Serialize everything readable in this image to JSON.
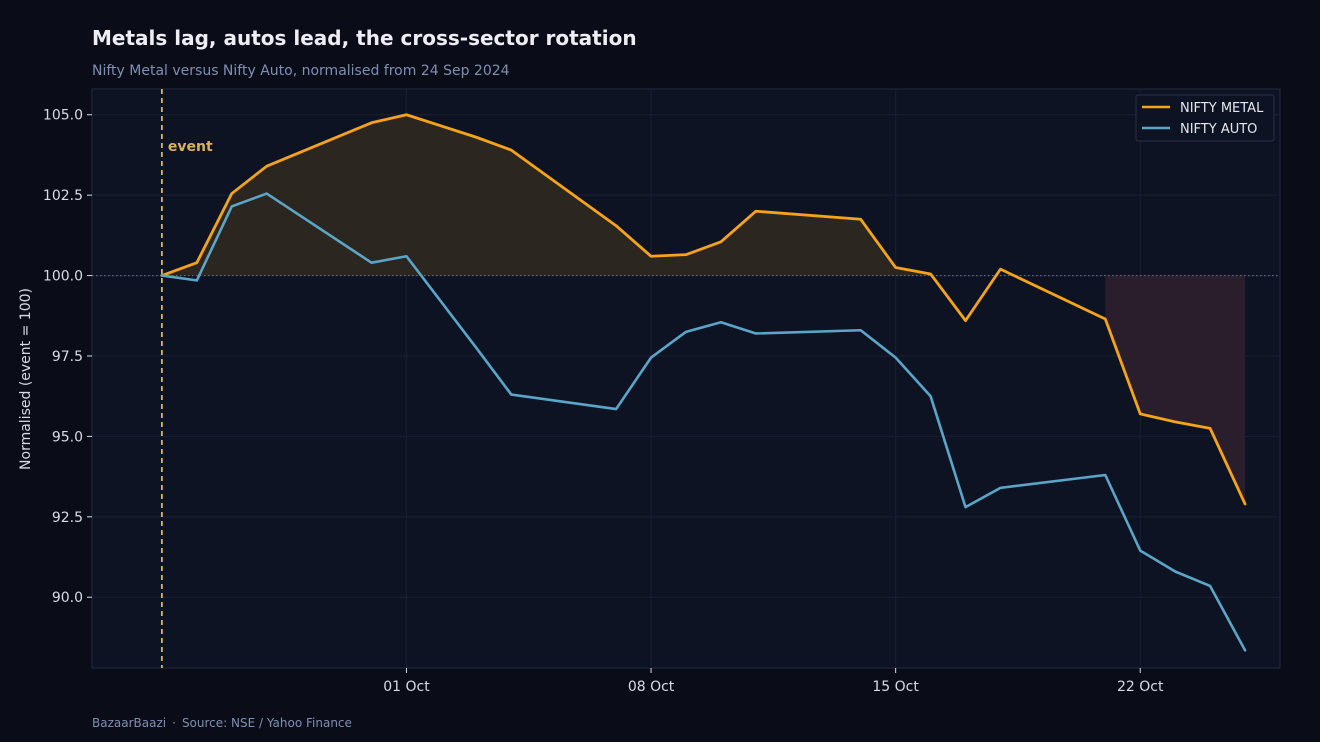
{
  "header": {
    "title": "Metals lag, autos lead, the cross-sector rotation",
    "subtitle": "Nifty Metal versus Nifty Auto, normalised from 24 Sep 2024"
  },
  "footer": {
    "brand": "BazaarBaazi",
    "source": "Source: NSE / Yahoo Finance"
  },
  "colors": {
    "background": "#0a0d18",
    "plot_bg": "#0e1324",
    "metal": "#f5a31a",
    "auto": "#5aa5c8",
    "event": "#d9b35c",
    "fill_above": "#2b2620",
    "fill_below": "#2a1e2d"
  },
  "chart_data": {
    "type": "line",
    "ylabel": "Normalised (event = 100)",
    "xlabel": "",
    "ylim": [
      87.8,
      105.8
    ],
    "y_ticks": [
      90.0,
      92.5,
      95.0,
      97.5,
      100.0,
      102.5,
      105.0
    ],
    "y_tick_labels": [
      "90.0",
      "92.5",
      "95.0",
      "97.5",
      "100.0",
      "102.5",
      "105.0"
    ],
    "xlim": [
      "2024-09-22",
      "2024-10-26"
    ],
    "x_ticks": [
      "2024-10-01",
      "2024-10-08",
      "2024-10-15",
      "2024-10-22"
    ],
    "x_tick_labels": [
      "01 Oct",
      "08 Oct",
      "15 Oct",
      "22 Oct"
    ],
    "baseline": 100,
    "grid": true,
    "legend_position": "top-right",
    "event": {
      "date": "2024-09-24",
      "label": "event"
    },
    "x": [
      "2024-09-24",
      "2024-09-25",
      "2024-09-26",
      "2024-09-27",
      "2024-09-30",
      "2024-10-01",
      "2024-10-03",
      "2024-10-04",
      "2024-10-07",
      "2024-10-08",
      "2024-10-09",
      "2024-10-10",
      "2024-10-11",
      "2024-10-14",
      "2024-10-15",
      "2024-10-16",
      "2024-10-17",
      "2024-10-18",
      "2024-10-21",
      "2024-10-22",
      "2024-10-23",
      "2024-10-24",
      "2024-10-25"
    ],
    "series": [
      {
        "name": "NIFTY METAL",
        "values": [
          100.0,
          100.4,
          102.55,
          103.4,
          104.75,
          105.0,
          104.3,
          103.9,
          101.55,
          100.6,
          100.65,
          101.05,
          102.0,
          101.75,
          100.25,
          100.05,
          98.6,
          100.2,
          98.65,
          95.7,
          95.45,
          95.25,
          92.9
        ]
      },
      {
        "name": "NIFTY AUTO",
        "values": [
          100.0,
          99.85,
          102.15,
          102.55,
          100.4,
          100.6,
          97.75,
          96.3,
          95.85,
          97.45,
          98.25,
          98.55,
          98.2,
          98.3,
          97.45,
          96.25,
          92.8,
          93.4,
          93.8,
          91.45,
          90.8,
          90.35,
          88.35
        ]
      }
    ]
  }
}
